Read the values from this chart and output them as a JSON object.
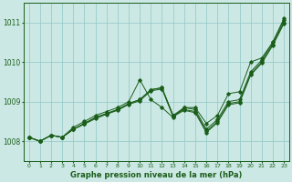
{
  "title": "Graphe pression niveau de la mer (hPa)",
  "bg_color": "#cce8e4",
  "grid_color": "#99cccc",
  "line_color": "#1a5e1a",
  "x_ticks": [
    0,
    1,
    2,
    3,
    4,
    5,
    6,
    7,
    8,
    9,
    10,
    11,
    12,
    13,
    14,
    15,
    16,
    17,
    18,
    19,
    20,
    21,
    22,
    23
  ],
  "y_ticks": [
    1008,
    1009,
    1010,
    1011
  ],
  "ylim": [
    1007.5,
    1011.5
  ],
  "xlim": [
    -0.5,
    23.5
  ],
  "series1": [
    1008.1,
    1008.0,
    1008.15,
    1008.1,
    1008.35,
    1008.5,
    1008.65,
    1008.75,
    1008.85,
    1009.0,
    1009.55,
    1009.05,
    1008.85,
    1008.6,
    1008.85,
    1008.85,
    1008.45,
    1008.65,
    1009.2,
    1009.25,
    1010.0,
    1010.1,
    1010.5,
    1011.1
  ],
  "series2": [
    1008.1,
    1008.0,
    1008.15,
    1008.1,
    1008.3,
    1008.45,
    1008.6,
    1008.7,
    1008.8,
    1008.95,
    1009.05,
    1009.3,
    1009.35,
    1008.65,
    1008.85,
    1008.8,
    1008.3,
    1008.55,
    1009.0,
    1009.05,
    1009.75,
    1010.05,
    1010.5,
    1011.05
  ],
  "series3": [
    1008.1,
    1008.0,
    1008.15,
    1008.1,
    1008.3,
    1008.45,
    1008.6,
    1008.7,
    1008.8,
    1008.95,
    1009.05,
    1009.3,
    1009.35,
    1008.65,
    1008.8,
    1008.75,
    1008.25,
    1008.5,
    1008.95,
    1009.0,
    1009.7,
    1010.0,
    1010.45,
    1011.0
  ],
  "series4": [
    1008.1,
    1008.0,
    1008.15,
    1008.1,
    1008.3,
    1008.43,
    1008.57,
    1008.68,
    1008.78,
    1008.93,
    1009.02,
    1009.27,
    1009.32,
    1008.62,
    1008.78,
    1008.72,
    1008.22,
    1008.47,
    1008.92,
    1008.97,
    1009.67,
    1009.97,
    1010.42,
    1010.97
  ]
}
